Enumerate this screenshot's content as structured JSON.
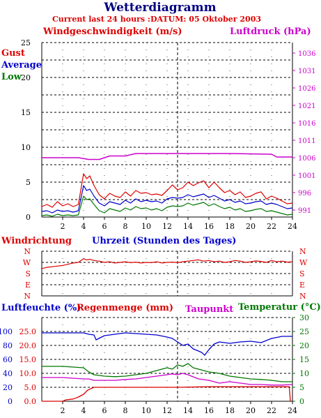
{
  "title": "Wetterdiagramm",
  "subtitle": "Current last 24 hours :DATUM: 05 Oktober 2003",
  "colors": {
    "gust": "#dd0000",
    "average": "#0000cc",
    "low": "#007700",
    "pressure": "#cc00cc",
    "direction": "#dd0000",
    "humidity": "#0000cc",
    "rain": "#dd0000",
    "dewpoint": "#cc00cc",
    "temperature": "#007700",
    "title": "#000080",
    "grid": "#000000",
    "current_time_line": "#000000"
  },
  "chart_data": [
    {
      "id": "wind",
      "type": "line",
      "title_left": "Windgeschwindigkeit (m/s)",
      "title_right": "Luftdruck (hPa)",
      "legend": [
        "Gust",
        "Average",
        "Low"
      ],
      "xlabel": "Uhrzeit (Stunden des Tages)",
      "xlim": [
        0,
        24
      ],
      "x_ticks": [
        "2",
        "4",
        "6",
        "8",
        "10",
        "12",
        "14",
        "16",
        "18",
        "20",
        "22",
        "24"
      ],
      "ylim_left": [
        0,
        25
      ],
      "y_ticks_left": [
        "0",
        "5",
        "10",
        "15",
        "20",
        "25"
      ],
      "ylim_right": [
        989,
        1039
      ],
      "y_ticks_right": [
        "991",
        "996",
        "1001",
        "1006",
        "1011",
        "1016",
        "1021",
        "1026",
        "1031",
        "1036"
      ],
      "current_hour": 13,
      "series": [
        {
          "name": "Gust",
          "color_key": "gust",
          "axis": "left",
          "x": [
            0,
            0.5,
            1,
            1.5,
            2,
            2.5,
            3,
            3.5,
            4,
            4.3,
            4.6,
            5,
            5.5,
            6,
            6.5,
            7,
            7.5,
            8,
            8.5,
            9,
            9.5,
            10,
            10.5,
            11,
            11.5,
            12,
            12.5,
            13,
            13.5,
            14,
            14.5,
            15,
            15.5,
            16,
            16.5,
            17,
            17.5,
            18,
            18.5,
            19,
            19.5,
            20,
            20.5,
            21,
            21.5,
            22,
            22.5,
            23,
            23.5,
            24
          ],
          "y": [
            1.5,
            1.8,
            1.4,
            2.2,
            1.6,
            1.9,
            1.5,
            1.8,
            6.2,
            5.5,
            5.9,
            4.5,
            3.2,
            2.6,
            3.4,
            3.0,
            2.8,
            3.6,
            3.0,
            3.8,
            3.4,
            3.5,
            3.2,
            3.3,
            3.1,
            3.8,
            4.6,
            3.9,
            4.2,
            5.0,
            4.5,
            4.9,
            5.2,
            4.2,
            5.0,
            4.2,
            3.5,
            3.8,
            3.2,
            3.6,
            2.8,
            3.0,
            3.4,
            3.6,
            2.6,
            3.0,
            2.7,
            2.3,
            1.9,
            2.0
          ]
        },
        {
          "name": "Average",
          "color_key": "average",
          "axis": "left",
          "x": [
            0,
            0.5,
            1,
            1.5,
            2,
            2.5,
            3,
            3.5,
            4,
            4.3,
            4.6,
            5,
            5.5,
            6,
            6.5,
            7,
            7.5,
            8,
            8.5,
            9,
            9.5,
            10,
            10.5,
            11,
            11.5,
            12,
            12.5,
            13,
            13.5,
            14,
            14.5,
            15,
            15.5,
            16,
            16.5,
            17,
            17.5,
            18,
            18.5,
            19,
            19.5,
            20,
            20.5,
            21,
            21.5,
            22,
            22.5,
            23,
            23.5,
            24
          ],
          "y": [
            0.8,
            0.9,
            0.6,
            1.0,
            0.8,
            0.9,
            0.7,
            0.9,
            4.5,
            3.8,
            4.0,
            3.0,
            2.0,
            1.6,
            2.2,
            2.0,
            1.8,
            2.4,
            2.0,
            2.6,
            2.2,
            2.4,
            2.2,
            2.3,
            2.0,
            2.6,
            2.8,
            2.7,
            2.8,
            3.2,
            2.9,
            3.1,
            3.3,
            2.8,
            3.1,
            2.7,
            2.3,
            2.5,
            2.1,
            2.3,
            1.9,
            2.0,
            2.2,
            2.3,
            1.8,
            2.0,
            1.8,
            1.5,
            1.2,
            1.3
          ]
        },
        {
          "name": "Low",
          "color_key": "low",
          "axis": "left",
          "x": [
            0,
            0.5,
            1,
            1.5,
            2,
            2.5,
            3,
            3.5,
            4,
            4.3,
            4.6,
            5,
            5.5,
            6,
            6.5,
            7,
            7.5,
            8,
            8.5,
            9,
            9.5,
            10,
            10.5,
            11,
            11.5,
            12,
            12.5,
            13,
            13.5,
            14,
            14.5,
            15,
            15.5,
            16,
            16.5,
            17,
            17.5,
            18,
            18.5,
            19,
            19.5,
            20,
            20.5,
            21,
            21.5,
            22,
            22.5,
            23,
            23.5,
            24
          ],
          "y": [
            0.2,
            0.3,
            0.1,
            0.4,
            0.2,
            0.3,
            0.2,
            0.3,
            3.0,
            2.5,
            2.6,
            1.8,
            0.9,
            0.6,
            1.2,
            1.0,
            0.8,
            1.3,
            1.0,
            1.5,
            1.2,
            1.3,
            1.0,
            1.2,
            0.9,
            1.4,
            1.6,
            1.5,
            1.6,
            2.0,
            1.7,
            1.9,
            2.1,
            1.6,
            1.9,
            1.5,
            1.2,
            1.4,
            1.0,
            1.2,
            0.8,
            0.9,
            1.1,
            1.2,
            0.8,
            0.9,
            0.7,
            0.5,
            0.3,
            0.4
          ]
        },
        {
          "name": "Luftdruck",
          "color_key": "pressure",
          "axis": "right",
          "x": [
            0,
            3.5,
            4.5,
            5.5,
            6,
            6.5,
            8,
            9,
            13,
            18,
            22,
            22.5,
            24
          ],
          "y": [
            1006.0,
            1006.0,
            1005.5,
            1005.5,
            1006.0,
            1006.5,
            1006.5,
            1007.2,
            1007.2,
            1007.2,
            1007.0,
            1006.2,
            1006.2
          ]
        }
      ]
    },
    {
      "id": "direction",
      "type": "line",
      "title": "Windrichtung",
      "categories": [
        "N",
        "W",
        "S",
        "E",
        "N"
      ],
      "current_hour": 13,
      "series": [
        {
          "name": "Windrichtung",
          "color_key": "direction",
          "x": [
            0,
            0.5,
            1,
            1.5,
            2,
            2.5,
            3,
            3.5,
            4,
            4.3,
            4.6,
            5,
            5.5,
            6,
            6.5,
            7,
            7.5,
            8,
            8.5,
            9,
            9.5,
            10,
            10.5,
            11,
            11.5,
            12,
            12.5,
            13,
            13.5,
            14,
            14.5,
            15,
            15.5,
            16,
            16.5,
            17,
            17.5,
            18,
            18.5,
            19,
            19.5,
            20,
            20.5,
            21,
            21.5,
            22,
            22.5,
            23,
            23.5,
            24
          ],
          "y": [
            220,
            230,
            235,
            240,
            245,
            255,
            265,
            270,
            300,
            290,
            295,
            285,
            280,
            270,
            275,
            265,
            270,
            275,
            268,
            272,
            265,
            270,
            268,
            275,
            265,
            270,
            272,
            268,
            275,
            280,
            285,
            290,
            280,
            285,
            275,
            280,
            270,
            275,
            285,
            280,
            270,
            275,
            282,
            278,
            270,
            285,
            275,
            280,
            272,
            275
          ]
        }
      ]
    },
    {
      "id": "humidity",
      "type": "line",
      "title_left": "Luftfeuchte (%)",
      "title_left2": "Regenmenge (mm)",
      "title_mid": "Taupunkt",
      "title_right": "Temperatur (",
      "title_right_unit": "°C)",
      "xlim": [
        0,
        24
      ],
      "x_ticks": [
        "2",
        "4",
        "6",
        "8",
        "10",
        "12",
        "14",
        "16",
        "18",
        "20",
        "22",
        "24"
      ],
      "ylim_humidity": [
        0,
        120
      ],
      "y_ticks_humidity": [
        "0",
        "20",
        "40",
        "60",
        "80",
        "100"
      ],
      "ylim_rain": [
        0,
        30
      ],
      "y_ticks_rain": [
        "0.0",
        "5.0",
        "10.0",
        "15.0",
        "20.0",
        "25.0"
      ],
      "ylim_temp": [
        0,
        30
      ],
      "y_ticks_temp": [
        "0",
        "5",
        "10",
        "15",
        "20",
        "25",
        "30"
      ],
      "current_hour": 13,
      "series": [
        {
          "name": "Luftfeuchte",
          "color_key": "humidity",
          "axis": "humidity",
          "x": [
            0,
            2,
            4,
            4.5,
            5,
            5.2,
            6,
            7,
            8,
            9,
            10,
            11,
            12,
            12.5,
            13,
            13.5,
            14,
            14.5,
            15,
            15.3,
            15.6,
            16,
            16.5,
            17,
            18,
            19,
            20,
            21,
            22,
            23,
            24
          ],
          "y": [
            98,
            98,
            98,
            96,
            95,
            88,
            94,
            96,
            98,
            97,
            96,
            95,
            92,
            90,
            85,
            80,
            82,
            75,
            72,
            70,
            66,
            74,
            82,
            85,
            83,
            85,
            86,
            84,
            90,
            93,
            93
          ]
        },
        {
          "name": "Regenmenge",
          "color_key": "rain",
          "axis": "rain",
          "x": [
            0,
            1.2,
            2,
            2.3,
            3,
            3.5,
            4,
            4.4,
            5,
            8,
            13,
            16,
            20,
            23.7,
            23.8
          ],
          "y": [
            0,
            0,
            0,
            0.5,
            0.8,
            1.5,
            2.5,
            4.0,
            5.0,
            5.0,
            5.0,
            5.2,
            5.2,
            5.2,
            0
          ]
        },
        {
          "name": "Taupunkt",
          "color_key": "dewpoint",
          "axis": "temp",
          "x": [
            0,
            2,
            4,
            4.5,
            5,
            6,
            7,
            8,
            9,
            10,
            11,
            12,
            12.5,
            13,
            13.5,
            14,
            15,
            16,
            17,
            18,
            19,
            20,
            21,
            22,
            23,
            24
          ],
          "y": [
            8.5,
            8.5,
            8.0,
            8.0,
            7.5,
            7.5,
            7.5,
            7.8,
            8.0,
            8.5,
            9.0,
            9.5,
            9.8,
            9.5,
            10.0,
            9.5,
            8.0,
            7.5,
            6.5,
            7.0,
            6.5,
            6.0,
            6.0,
            5.8,
            5.8,
            6.0
          ]
        },
        {
          "name": "Temperatur",
          "color_key": "temperature",
          "axis": "temp",
          "x": [
            0,
            2,
            4,
            4.5,
            5,
            6,
            7,
            8,
            9,
            10,
            11,
            12,
            12.5,
            13,
            13.5,
            14,
            14.5,
            15,
            16,
            17,
            18,
            19,
            20,
            21,
            22,
            23,
            24
          ],
          "y": [
            12.5,
            12.5,
            12.0,
            10.5,
            9.5,
            9.0,
            8.8,
            9.0,
            9.5,
            10.0,
            11.0,
            12.0,
            11.5,
            13.0,
            12.5,
            13.5,
            12.0,
            11.5,
            10.5,
            10.0,
            9.0,
            8.5,
            8.0,
            7.8,
            7.5,
            7.0,
            7.0
          ]
        }
      ]
    }
  ]
}
